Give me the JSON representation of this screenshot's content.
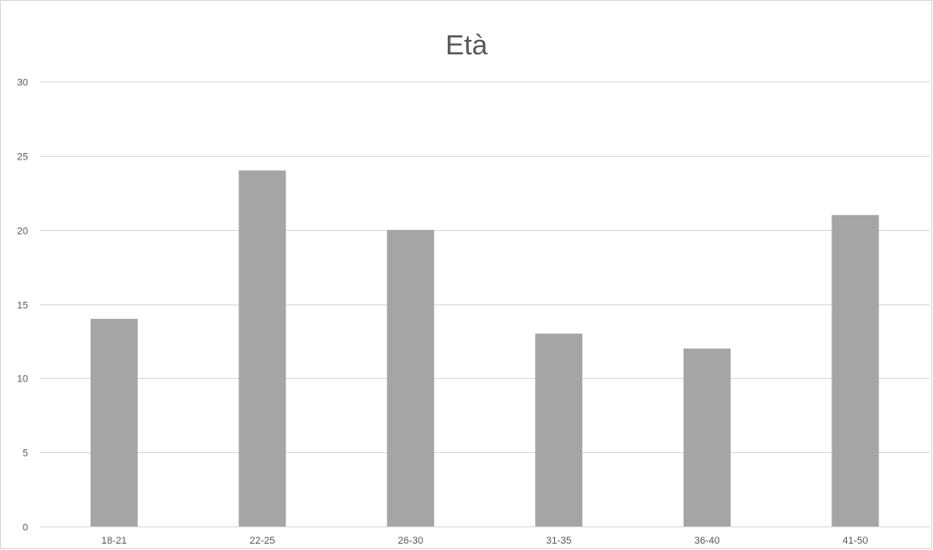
{
  "chart_data": {
    "type": "bar",
    "title": "Età",
    "xlabel": "",
    "ylabel": "",
    "categories": [
      "18-21",
      "22-25",
      "26-30",
      "31-35",
      "36-40",
      "41-50"
    ],
    "values": [
      14,
      24,
      20,
      13,
      12,
      21
    ],
    "ylim": [
      0,
      30
    ],
    "yticks": [
      0,
      5,
      10,
      15,
      20,
      25,
      30
    ],
    "grid": true,
    "legend": "none",
    "bar_color": "#a5a5a5",
    "grid_color": "#d9d9d9",
    "text_color": "#595959"
  }
}
